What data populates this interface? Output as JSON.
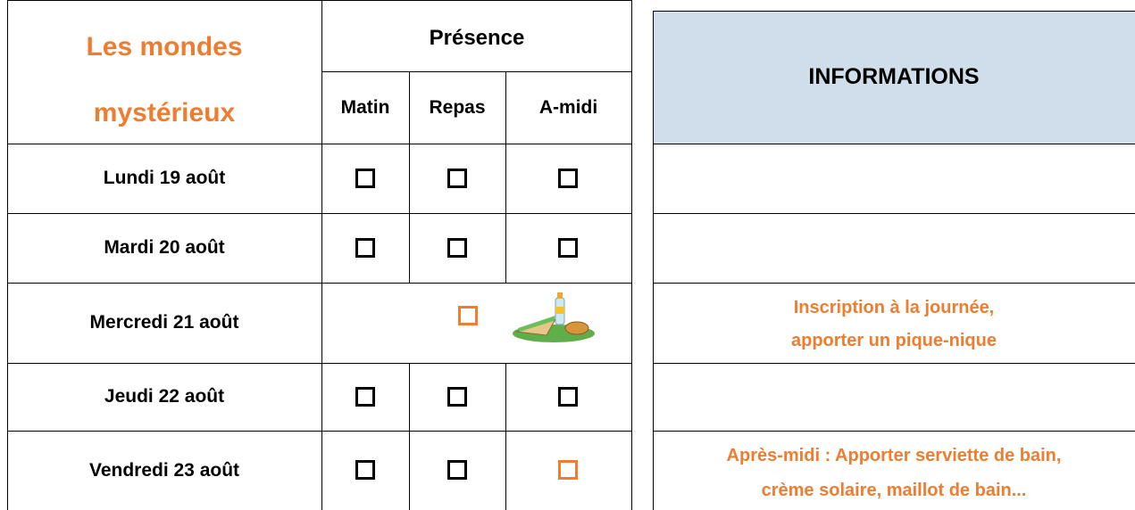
{
  "schedule": {
    "title": [
      "Les mondes",
      "mystérieux"
    ],
    "presence_header": "Présence",
    "columns": [
      "Matin",
      "Repas",
      "A-midi"
    ],
    "days": [
      "Lundi 19 août",
      "Mardi 20 août",
      "Mercredi 21 août",
      "Jeudi 22 août",
      "Vendredi 23 août"
    ]
  },
  "info": {
    "header": "INFORMATIONS",
    "wednesday_note": [
      "Inscription à la journée,",
      "apporter un pique-nique"
    ],
    "friday_note": [
      "Après-midi : Apporter serviette de bain,",
      "crème solaire, maillot de bain..."
    ]
  }
}
